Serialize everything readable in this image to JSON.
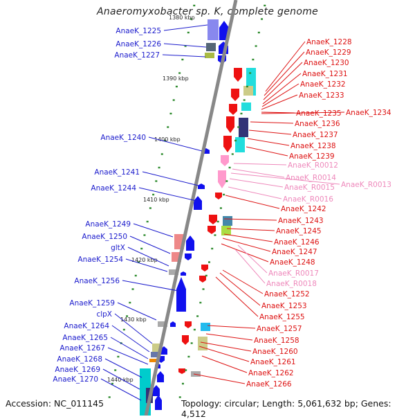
{
  "title": "Anaeromyxobacter sp. K, complete genome",
  "top_partial_label": "1380 kbp",
  "footer": {
    "accession": "Accession: NC_011145",
    "summary": "Topology: circular; Length: 5,061,632 bp; Genes: 4,512"
  },
  "colors": {
    "left_label": "#1a1acc",
    "right_label": "#dd1111",
    "rna_label": "#ee88bb",
    "backbone": "#888888",
    "tick": "#2e8b2e"
  },
  "kbp_marks": [
    "1390 kbp",
    "1400 kbp",
    "1410 kbp",
    "1420 kbp",
    "1430 kbp",
    "1440 kbp"
  ],
  "left_labels": [
    "AnaeK_1225",
    "AnaeK_1226",
    "AnaeK_1227",
    "AnaeK_1240",
    "AnaeK_1241",
    "AnaeK_1244",
    "AnaeK_1249",
    "AnaeK_1250",
    "gltX",
    "AnaeK_1254",
    "AnaeK_1256",
    "AnaeK_1259",
    "clpX",
    "AnaeK_1264",
    "AnaeK_1265",
    "AnaeK_1267",
    "AnaeK_1268",
    "AnaeK_1269",
    "AnaeK_1270"
  ],
  "right_labels": [
    "AnaeK_1228",
    "AnaeK_1229",
    "AnaeK_1230",
    "AnaeK_1231",
    "AnaeK_1232",
    "AnaeK_1233",
    "AnaeK_1235",
    "AnaeK_1234",
    "AnaeK_1236",
    "AnaeK_1237",
    "AnaeK_1238",
    "AnaeK_1239",
    "AnaeK_R0012",
    "AnaeK_R0014",
    "AnaeK_R0013",
    "AnaeK_R0015",
    "AnaeK_R0016",
    "AnaeK_1242",
    "AnaeK_1243",
    "AnaeK_1245",
    "AnaeK_1246",
    "AnaeK_1247",
    "AnaeK_1248",
    "AnaeK_R0017",
    "AnaeK_R0018",
    "AnaeK_1252",
    "AnaeK_1253",
    "AnaeK_1255",
    "AnaeK_1257",
    "AnaeK_1258",
    "AnaeK_1260",
    "AnaeK_1261",
    "AnaeK_1262",
    "AnaeK_1266"
  ]
}
